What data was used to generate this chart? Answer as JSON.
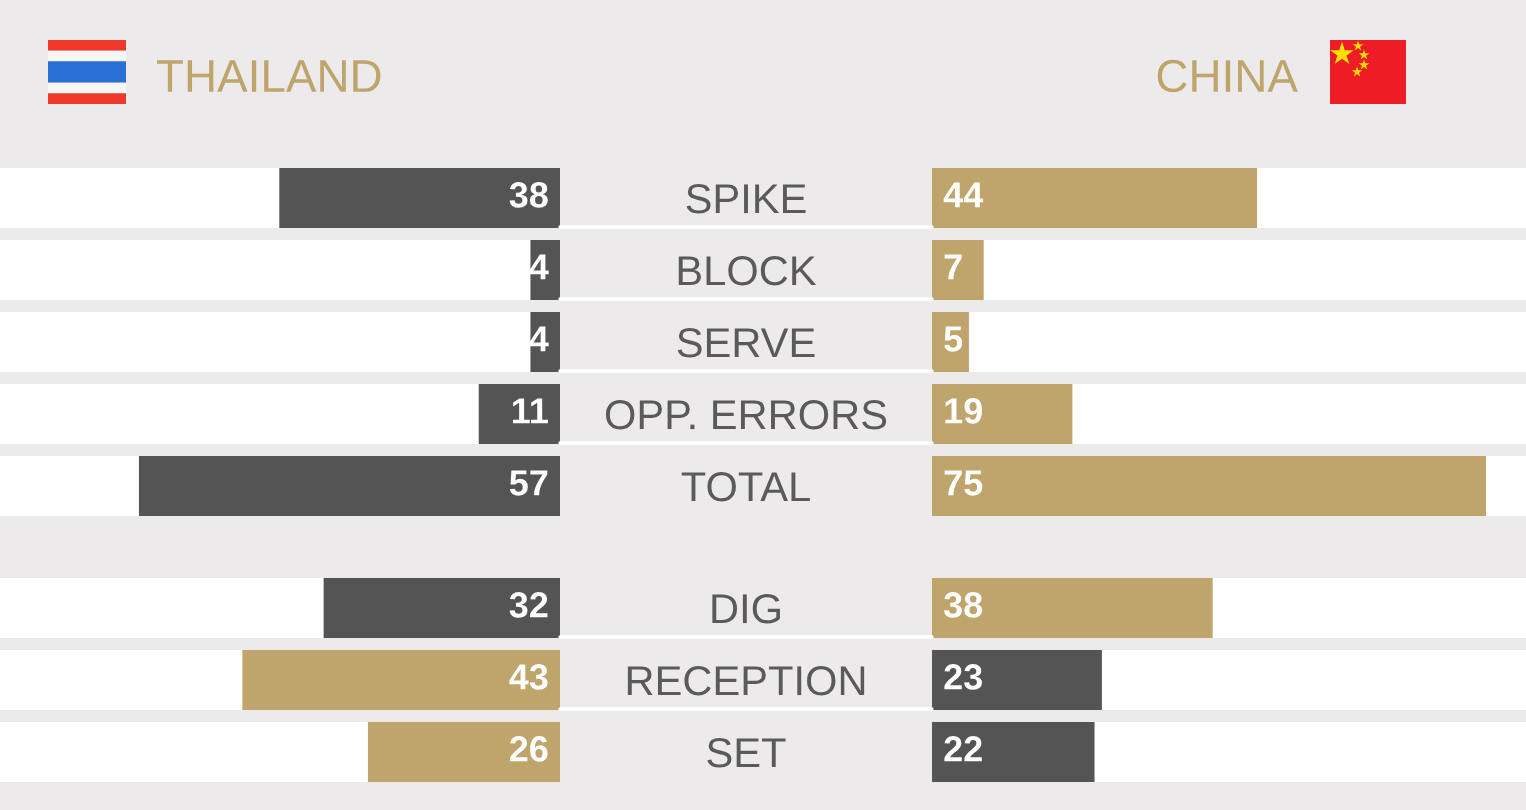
{
  "chart_data": [
    {
      "type": "bar",
      "orientation": "horizontal",
      "categories": [
        "SPIKE",
        "BLOCK",
        "SERVE",
        "OPP. ERRORS",
        "TOTAL"
      ],
      "series": [
        {
          "name": "THAILAND",
          "colors": [
            "#545454",
            "#545454",
            "#545454",
            "#545454",
            "#545454"
          ],
          "values": [
            38,
            4,
            4,
            11,
            57
          ]
        }
      ],
      "data_labels": true,
      "tick_labels": "y"
    },
    {
      "type": "bar",
      "orientation": "horizontal",
      "categories": [
        "SPIKE",
        "BLOCK",
        "SERVE",
        "OPP. ERRORS",
        "TOTAL"
      ],
      "series": [
        {
          "name": "CHINA",
          "colors": [
            "#bfa56b",
            "#bfa56b",
            "#bfa56b",
            "#bfa56b",
            "#bfa56b"
          ],
          "values": [
            44,
            7,
            5,
            19,
            75
          ]
        }
      ],
      "data_labels": true,
      "tick_labels": false
    },
    {
      "type": "bar",
      "orientation": "horizontal",
      "categories": [
        "DIG",
        "RECEPTION",
        "SET"
      ],
      "series": [
        {
          "colors": [
            "#545454",
            "#bfa56b",
            "#bfa56b"
          ],
          "values": [
            32,
            43,
            26
          ]
        }
      ],
      "data_labels": true,
      "tick_labels": "y"
    },
    {
      "type": "bar",
      "orientation": "horizontal",
      "categories": [
        "DIG",
        "RECEPTION",
        "SET"
      ],
      "series": [
        {
          "colors": [
            "#bfa56b",
            "#545454",
            "#545454"
          ],
          "values": [
            38,
            23,
            22
          ]
        }
      ],
      "data_labels": true,
      "tick_labels": false
    }
  ]
}
